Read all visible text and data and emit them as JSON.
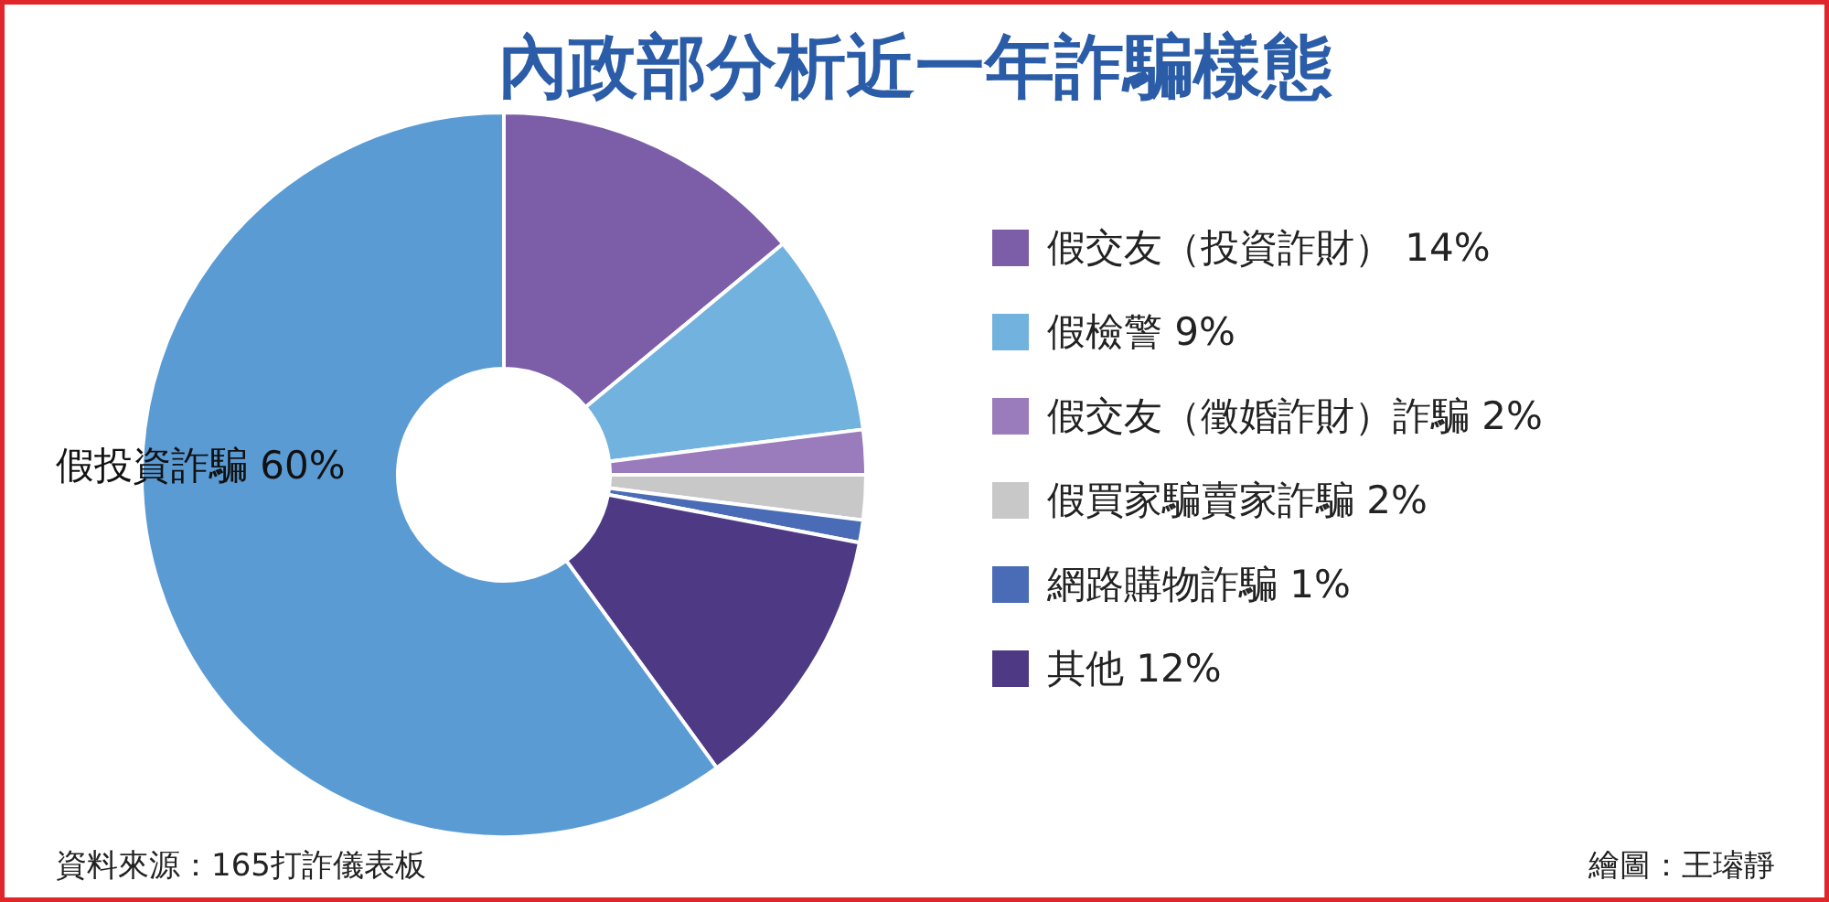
{
  "chart_data": {
    "type": "donut",
    "title": "內政部分析近一年詐騙樣態",
    "categories": [
      "假交友（投資詐財）",
      "假檢警",
      "假交友（徵婚詐財）詐騙",
      "假買家騙賣家詐騙",
      "網路購物詐騙",
      "其他",
      "假投資詐騙"
    ],
    "values": [
      14,
      9,
      2,
      2,
      1,
      12,
      60
    ],
    "value_labels": [
      "14%",
      "9%",
      "2%",
      "2%",
      "1%",
      "12%",
      "60%"
    ],
    "colors": [
      "#7b5ea7",
      "#72b2de",
      "#9a7bbb",
      "#c8c8c8",
      "#4a6bb5",
      "#4e3a84",
      "#5a9bd4"
    ],
    "legend": "right",
    "annotations": [
      "資料來源：165打詐儀表板",
      "繪圖：王璿靜"
    ]
  }
}
